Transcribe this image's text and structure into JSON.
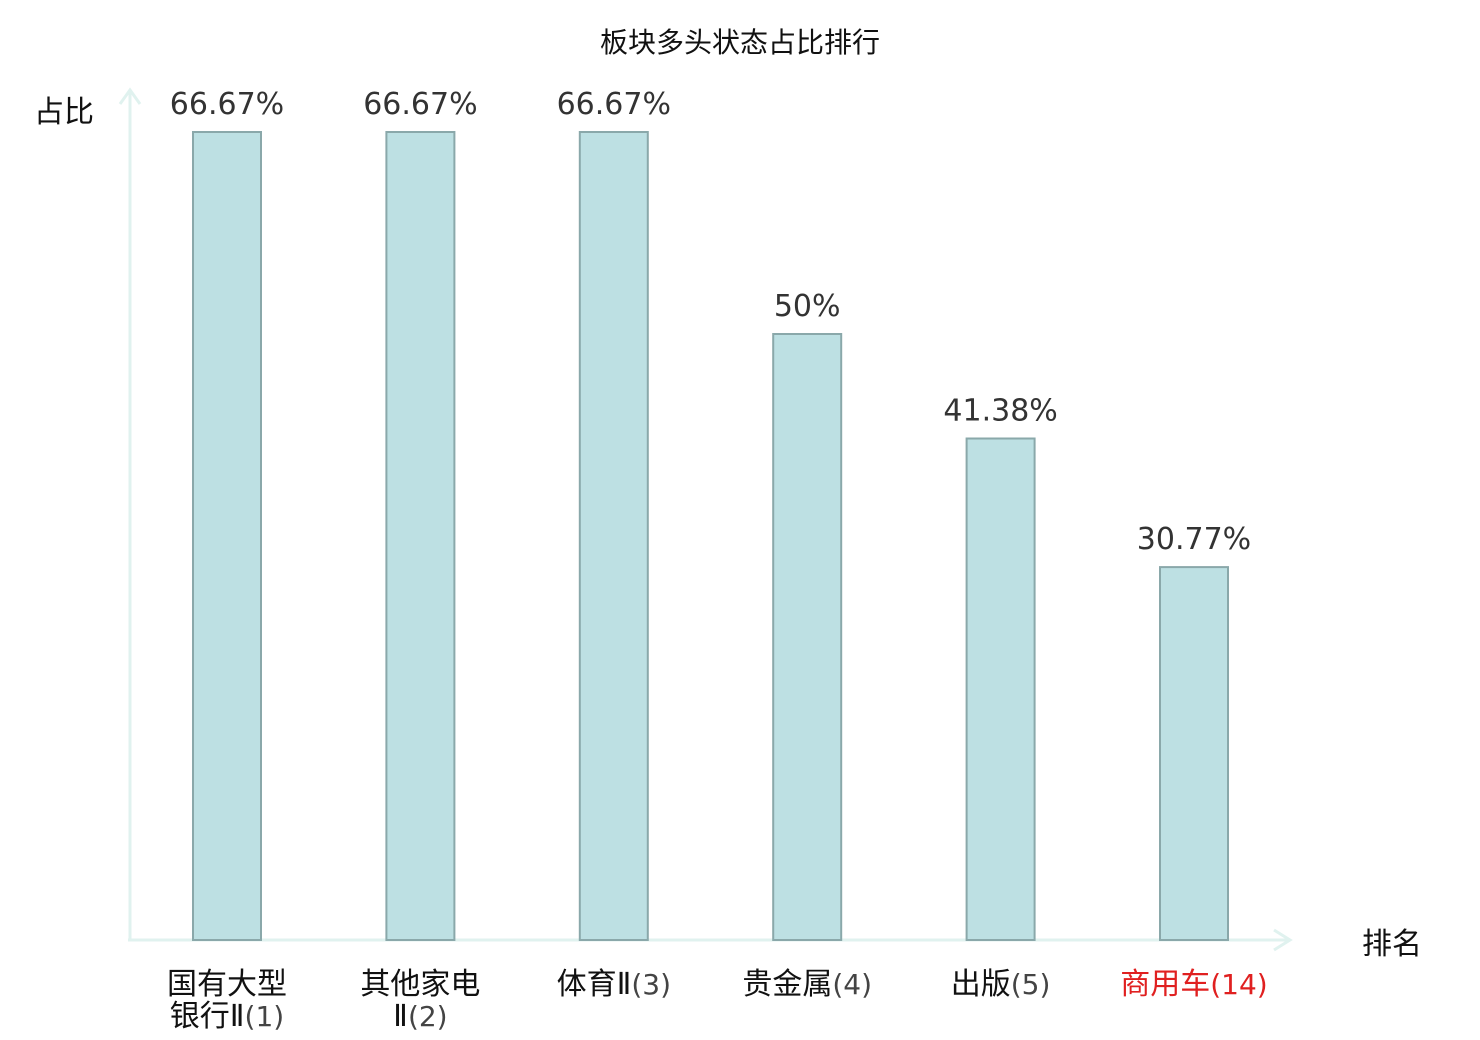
{
  "chart_data": {
    "type": "bar",
    "title": "板块多头状态占比排行",
    "xlabel": "排名",
    "ylabel": "占比",
    "ylim": [
      0,
      66.67
    ],
    "grid": false,
    "legend": "none",
    "categories": [
      {
        "name_lines": [
          "国有大型",
          "银行Ⅱ"
        ],
        "rank": "(1)",
        "highlight": false
      },
      {
        "name_lines": [
          "其他家电",
          "Ⅱ"
        ],
        "rank": "(2)",
        "highlight": false
      },
      {
        "name_lines": [
          "体育Ⅱ"
        ],
        "rank": "(3)",
        "highlight": false
      },
      {
        "name_lines": [
          "贵金属"
        ],
        "rank": "(4)",
        "highlight": false
      },
      {
        "name_lines": [
          "出版"
        ],
        "rank": "(5)",
        "highlight": false
      },
      {
        "name_lines": [
          "商用车"
        ],
        "rank": "(14)",
        "highlight": true
      }
    ],
    "values": [
      66.67,
      66.67,
      66.67,
      50,
      41.38,
      30.77
    ],
    "value_labels": [
      "66.67%",
      "66.67%",
      "66.67%",
      "50%",
      "41.38%",
      "30.77%"
    ]
  },
  "colors": {
    "bar_fill": "#bde0e3",
    "bar_stroke": "#8aa8aa",
    "axis": "#e0f2ef",
    "text": "#111111",
    "rank_text": "#444444",
    "highlight": "#e02020"
  }
}
